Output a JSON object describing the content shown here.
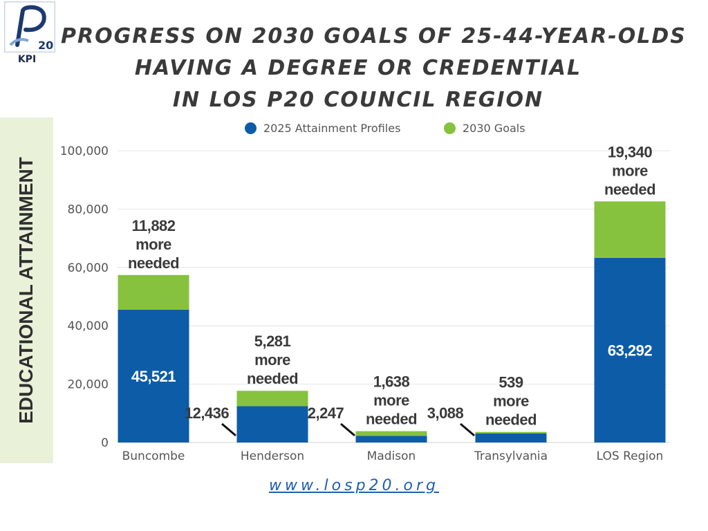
{
  "logo": {
    "text": "20",
    "caption": "KPI"
  },
  "title_lines": [
    "PROGRESS ON 2030 GOALS OF 25-44-YEAR-OLDS",
    "HAVING A DEGREE OR CREDENTIAL",
    "IN LOS P20 COUNCIL REGION"
  ],
  "colors": {
    "attainment": "#0d5ca8",
    "goal": "#86c23e",
    "panel": "#e9f2d9"
  },
  "url": "www.losp20.org",
  "chart_data": {
    "type": "bar",
    "stacked": true,
    "title": "PROGRESS ON 2030 GOALS OF 25-44-YEAR-OLDS HAVING A DEGREE OR CREDENTIAL IN LOS P20 COUNCIL REGION",
    "ylabel": "EDUCATIONAL ATTAINMENT",
    "xlabel": "",
    "categories": [
      "Buncombe",
      "Henderson",
      "Madison",
      "Transylvania",
      "LOS Region"
    ],
    "ylim": [
      0,
      100000
    ],
    "yticks": [
      "0",
      "20,000",
      "40,000",
      "60,000",
      "80,000",
      "100,000"
    ],
    "grid": true,
    "legend_position": "top",
    "series": [
      {
        "name": "2025 Attainment Profiles",
        "values": [
          45521,
          12436,
          2247,
          3088,
          63292
        ],
        "labels": [
          "45,521",
          "12,436",
          "2,247",
          "3,088",
          "63,292"
        ]
      },
      {
        "name": "2030 Goals",
        "values": [
          11882,
          5281,
          1638,
          539,
          19340
        ],
        "labels": [
          "11,882\nmore\nneeded",
          "5,281\nmore\nneeded",
          "1,638\nmore\nneeded",
          "539\nmore\nneeded",
          "19,340\nmore\nneeded"
        ]
      }
    ]
  }
}
